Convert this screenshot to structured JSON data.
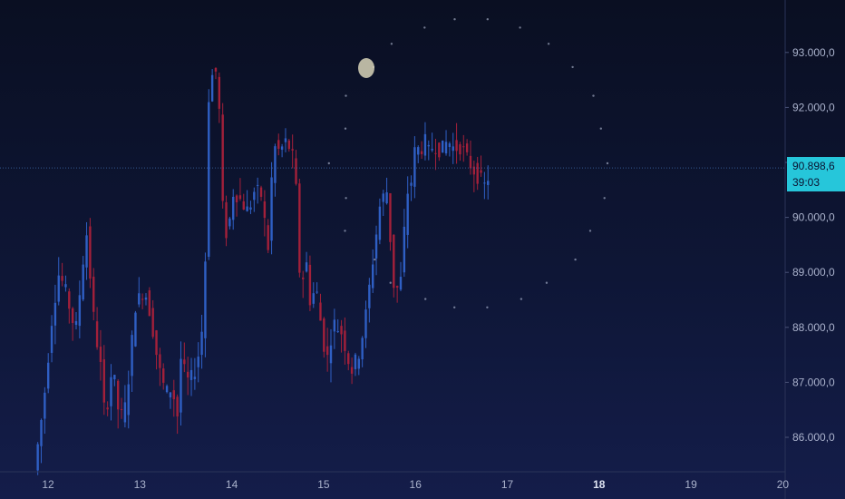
{
  "chart_data": {
    "type": "candlestick",
    "xlabel": "",
    "ylabel": "",
    "x_ticks": [
      {
        "label": "12",
        "day": 12,
        "bold": false
      },
      {
        "label": "13",
        "day": 13,
        "bold": false
      },
      {
        "label": "14",
        "day": 14,
        "bold": false
      },
      {
        "label": "15",
        "day": 15,
        "bold": false
      },
      {
        "label": "16",
        "day": 16,
        "bold": false
      },
      {
        "label": "17",
        "day": 17,
        "bold": false
      },
      {
        "label": "18",
        "day": 18,
        "bold": true
      },
      {
        "label": "19",
        "day": 19,
        "bold": false
      },
      {
        "label": "20",
        "day": 20,
        "bold": false
      }
    ],
    "y_ticks": [
      {
        "label": "86.000,0",
        "value": 86000
      },
      {
        "label": "87.000,0",
        "value": 87000
      },
      {
        "label": "88.000,0",
        "value": 88000
      },
      {
        "label": "89.000,0",
        "value": 89000
      },
      {
        "label": "90.000,0",
        "value": 90000
      },
      {
        "label": "91.000,0",
        "value": 91000
      },
      {
        "label": "92.000,0",
        "value": 92000
      },
      {
        "label": "93.000,0",
        "value": 93000
      }
    ],
    "ylim": [
      85400,
      94000
    ],
    "xlim": [
      11.6,
      20.15
    ],
    "current_price": 90898.6,
    "current_price_label": "90.898,6",
    "countdown": "39:03",
    "close_path": [
      [
        11.85,
        85400
      ],
      [
        11.95,
        86600
      ],
      [
        12.05,
        88300
      ],
      [
        12.12,
        89000
      ],
      [
        12.2,
        88600
      ],
      [
        12.3,
        87900
      ],
      [
        12.38,
        89200
      ],
      [
        12.42,
        89700
      ],
      [
        12.5,
        88100
      ],
      [
        12.58,
        87200
      ],
      [
        12.62,
        86300
      ],
      [
        12.7,
        87300
      ],
      [
        12.78,
        86300
      ],
      [
        12.85,
        86600
      ],
      [
        12.95,
        88400
      ],
      [
        13.05,
        88700
      ],
      [
        13.12,
        88200
      ],
      [
        13.2,
        87300
      ],
      [
        13.28,
        86800
      ],
      [
        13.35,
        86900
      ],
      [
        13.42,
        86300
      ],
      [
        13.45,
        87600
      ],
      [
        13.5,
        87000
      ],
      [
        13.58,
        87100
      ],
      [
        13.65,
        87600
      ],
      [
        13.7,
        88300
      ],
      [
        13.75,
        92200
      ],
      [
        13.8,
        92700
      ],
      [
        13.85,
        92600
      ],
      [
        13.9,
        90200
      ],
      [
        13.95,
        89600
      ],
      [
        14.02,
        90500
      ],
      [
        14.1,
        90300
      ],
      [
        14.18,
        90100
      ],
      [
        14.25,
        90500
      ],
      [
        14.32,
        90400
      ],
      [
        14.4,
        89400
      ],
      [
        14.45,
        91300
      ],
      [
        14.52,
        91200
      ],
      [
        14.6,
        91400
      ],
      [
        14.68,
        91000
      ],
      [
        14.72,
        90000
      ],
      [
        14.75,
        88400
      ],
      [
        14.8,
        89400
      ],
      [
        14.85,
        88500
      ],
      [
        14.92,
        88700
      ],
      [
        15.0,
        87700
      ],
      [
        15.05,
        87400
      ],
      [
        15.1,
        88100
      ],
      [
        15.2,
        87900
      ],
      [
        15.3,
        87200
      ],
      [
        15.38,
        87500
      ],
      [
        15.45,
        88100
      ],
      [
        15.55,
        89400
      ],
      [
        15.62,
        90300
      ],
      [
        15.7,
        90500
      ],
      [
        15.75,
        88800
      ],
      [
        15.8,
        88700
      ],
      [
        15.85,
        88900
      ],
      [
        15.9,
        90400
      ],
      [
        15.95,
        90600
      ],
      [
        16.0,
        91300
      ],
      [
        16.05,
        91200
      ],
      [
        16.1,
        91400
      ],
      [
        16.15,
        91150
      ],
      [
        16.2,
        91350
      ],
      [
        16.28,
        91200
      ],
      [
        16.35,
        91400
      ],
      [
        16.42,
        91250
      ],
      [
        16.5,
        91300
      ],
      [
        16.55,
        91100
      ],
      [
        16.62,
        90900
      ],
      [
        16.7,
        90700
      ],
      [
        16.76,
        90550
      ],
      [
        16.82,
        90900
      ]
    ]
  }
}
